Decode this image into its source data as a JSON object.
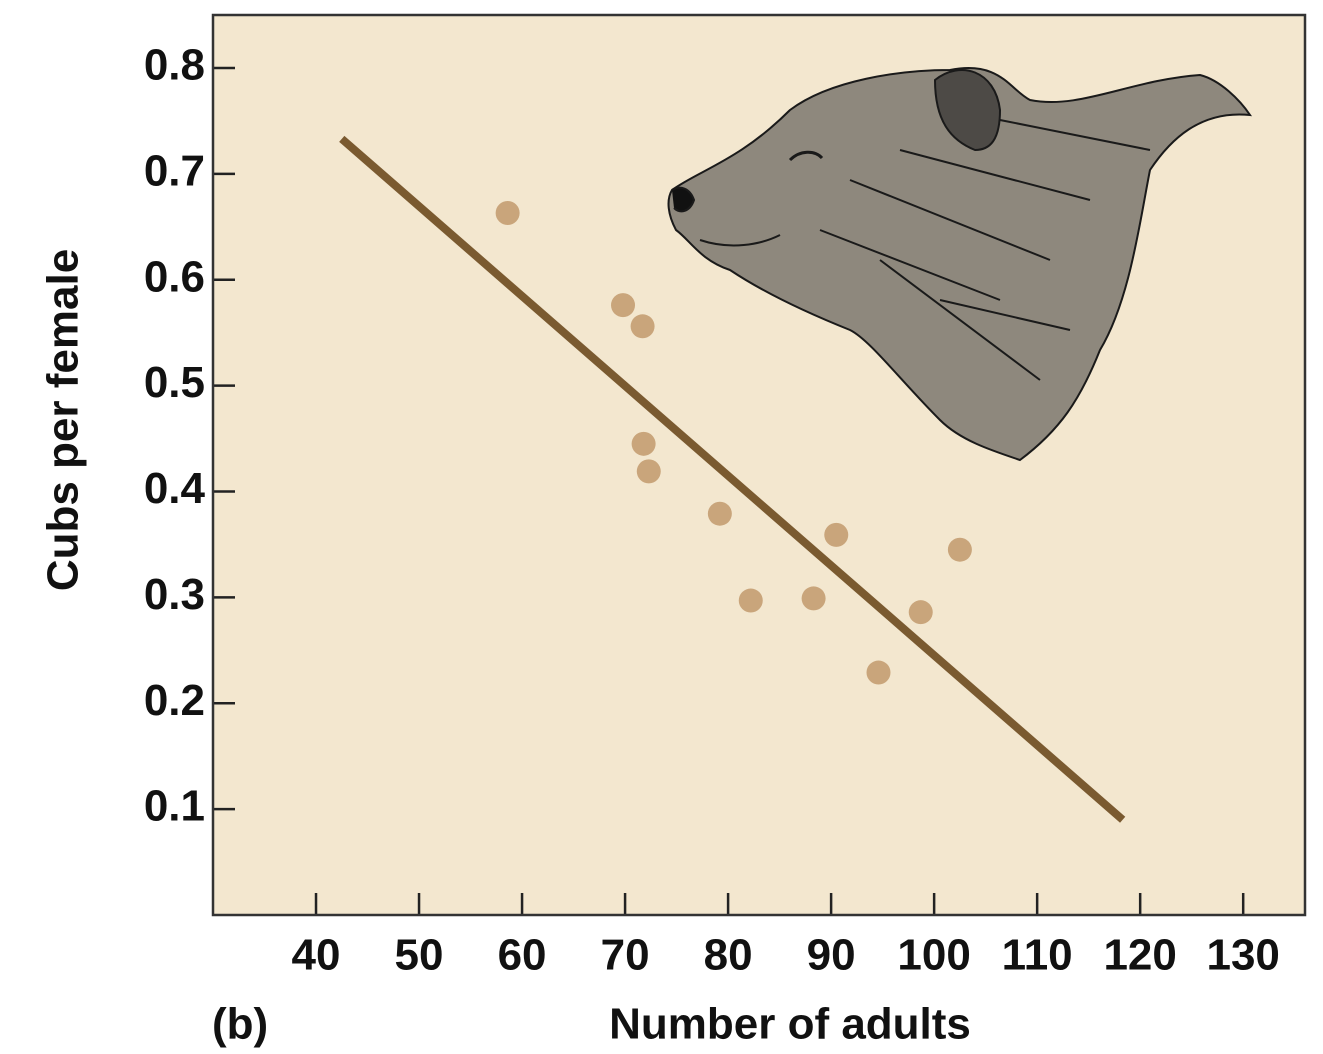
{
  "chart_data": {
    "type": "scatter",
    "panel_label": "(b)",
    "x_label": "Number of adults",
    "y_label": "Cubs per female",
    "x": [
      58.6,
      69.8,
      71.7,
      71.8,
      72.3,
      79.2,
      82.2,
      88.3,
      90.5,
      94.6,
      98.7,
      102.5
    ],
    "values": [
      0.663,
      0.576,
      0.556,
      0.445,
      0.419,
      0.379,
      0.297,
      0.299,
      0.359,
      0.229,
      0.286,
      0.345
    ],
    "color": "#c9a57b",
    "trend_line": {
      "x": [
        42.5,
        118.3
      ],
      "values": [
        0.733,
        0.09
      ],
      "color": "#7a5a30"
    },
    "xlim": [
      30,
      136
    ],
    "xticks": [
      40,
      50,
      60,
      70,
      80,
      90,
      100,
      110,
      120,
      130
    ],
    "ylim": [
      0,
      0.85
    ],
    "yticks": [
      0.1,
      0.2,
      0.3,
      0.4,
      0.5,
      0.6,
      0.7,
      0.8
    ],
    "background": "#f3e7cf"
  }
}
